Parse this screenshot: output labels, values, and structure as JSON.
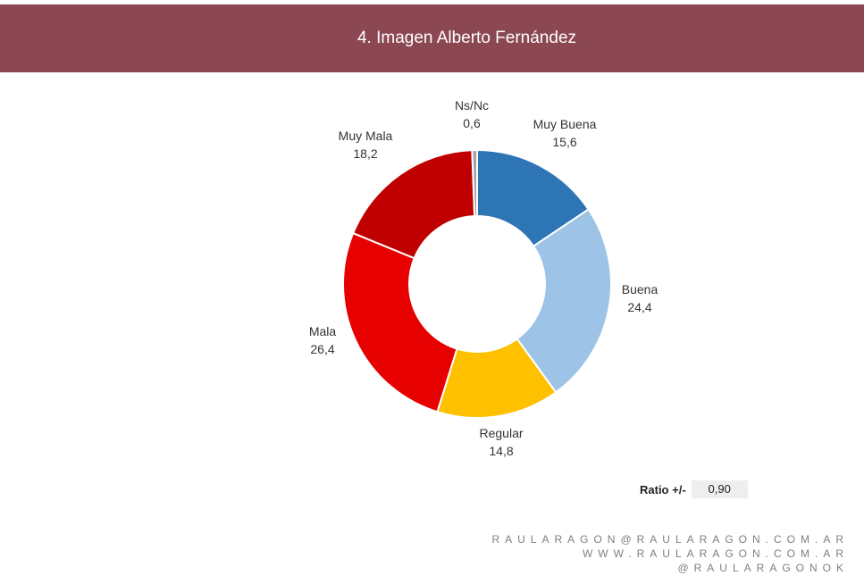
{
  "header": {
    "title": "4. Imagen Alberto Fernández"
  },
  "chart_data": {
    "type": "pie",
    "title": "",
    "slices": [
      {
        "label": "Muy Buena",
        "value": 15.6,
        "display": "15,6",
        "color": "#2e75b6"
      },
      {
        "label": "Buena",
        "value": 24.4,
        "display": "24,4",
        "color": "#9dc3e6"
      },
      {
        "label": "Regular",
        "value": 14.8,
        "display": "14,8",
        "color": "#ffc000"
      },
      {
        "label": "Mala",
        "value": 26.4,
        "display": "26,4",
        "color": "#e60000"
      },
      {
        "label": "Muy Mala",
        "value": 18.2,
        "display": "18,2",
        "color": "#c00000"
      },
      {
        "label": "Ns/Nc",
        "value": 0.6,
        "display": "0,6",
        "color": "#a5a5a5"
      }
    ],
    "donut": true,
    "start": "top",
    "direction": "clockwise"
  },
  "ratio": {
    "label": "Ratio +/-",
    "value": "0,90"
  },
  "footer": {
    "lines": [
      "RAULARAGON@RAULARAGON.COM.AR",
      "WWW.RAULARAGON.COM.AR",
      "@RAULARAGONOK"
    ]
  }
}
